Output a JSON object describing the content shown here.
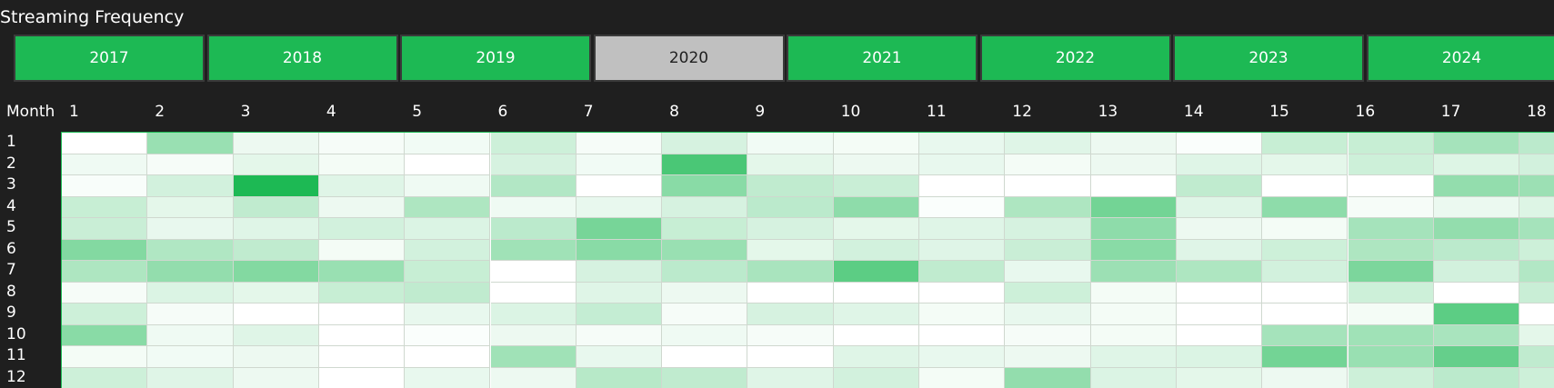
{
  "title": "Streaming Frequency",
  "years": {
    "items": [
      "2017",
      "2018",
      "2019",
      "2020",
      "2021",
      "2022",
      "2023",
      "2024"
    ],
    "selected": "2020"
  },
  "heatmap": {
    "row_header": "Month",
    "columns": [
      "1",
      "2",
      "3",
      "4",
      "5",
      "6",
      "7",
      "8",
      "9",
      "10",
      "11",
      "12",
      "13",
      "14",
      "15",
      "16",
      "17",
      "18"
    ],
    "rows": [
      "1",
      "2",
      "3",
      "4",
      "5",
      "6",
      "7",
      "8",
      "9",
      "10",
      "11",
      "12"
    ],
    "accent": "#1db954",
    "intensity": [
      [
        0.0,
        0.45,
        0.08,
        0.04,
        0.06,
        0.22,
        0.04,
        0.18,
        0.06,
        0.05,
        0.1,
        0.14,
        0.08,
        0.02,
        0.25,
        0.25,
        0.4,
        0.3
      ],
      [
        0.07,
        0.04,
        0.12,
        0.05,
        0.0,
        0.18,
        0.06,
        0.8,
        0.12,
        0.08,
        0.1,
        0.05,
        0.08,
        0.14,
        0.12,
        0.22,
        0.15,
        0.2
      ],
      [
        0.03,
        0.2,
        1.0,
        0.14,
        0.07,
        0.34,
        0.0,
        0.52,
        0.28,
        0.24,
        0.0,
        0.0,
        0.0,
        0.28,
        0.0,
        0.0,
        0.48,
        0.44
      ],
      [
        0.25,
        0.12,
        0.28,
        0.08,
        0.36,
        0.07,
        0.1,
        0.18,
        0.3,
        0.5,
        0.02,
        0.36,
        0.62,
        0.14,
        0.5,
        0.04,
        0.09,
        0.15
      ],
      [
        0.24,
        0.1,
        0.14,
        0.2,
        0.16,
        0.3,
        0.6,
        0.25,
        0.18,
        0.12,
        0.14,
        0.18,
        0.5,
        0.08,
        0.05,
        0.4,
        0.48,
        0.4
      ],
      [
        0.55,
        0.35,
        0.28,
        0.05,
        0.2,
        0.42,
        0.52,
        0.45,
        0.12,
        0.2,
        0.14,
        0.24,
        0.52,
        0.14,
        0.22,
        0.36,
        0.3,
        0.22
      ],
      [
        0.36,
        0.48,
        0.55,
        0.45,
        0.25,
        0.0,
        0.18,
        0.3,
        0.38,
        0.72,
        0.28,
        0.1,
        0.44,
        0.36,
        0.2,
        0.58,
        0.2,
        0.34
      ],
      [
        0.04,
        0.16,
        0.12,
        0.25,
        0.28,
        0.0,
        0.14,
        0.08,
        0.0,
        0.0,
        0.0,
        0.22,
        0.05,
        0.0,
        0.0,
        0.22,
        0.0,
        0.24
      ],
      [
        0.22,
        0.04,
        0.0,
        0.0,
        0.1,
        0.16,
        0.26,
        0.04,
        0.18,
        0.14,
        0.05,
        0.1,
        0.05,
        0.0,
        0.0,
        0.05,
        0.72,
        0.0
      ],
      [
        0.52,
        0.07,
        0.14,
        0.0,
        0.02,
        0.08,
        0.04,
        0.07,
        0.04,
        0.0,
        0.0,
        0.04,
        0.05,
        0.0,
        0.4,
        0.42,
        0.38,
        0.12
      ],
      [
        0.05,
        0.06,
        0.08,
        0.0,
        0.0,
        0.42,
        0.1,
        0.0,
        0.0,
        0.14,
        0.1,
        0.08,
        0.14,
        0.16,
        0.62,
        0.45,
        0.68,
        0.28
      ],
      [
        0.22,
        0.14,
        0.08,
        0.0,
        0.1,
        0.08,
        0.32,
        0.28,
        0.14,
        0.2,
        0.05,
        0.48,
        0.16,
        0.12,
        0.08,
        0.22,
        0.3,
        0.22
      ]
    ]
  }
}
